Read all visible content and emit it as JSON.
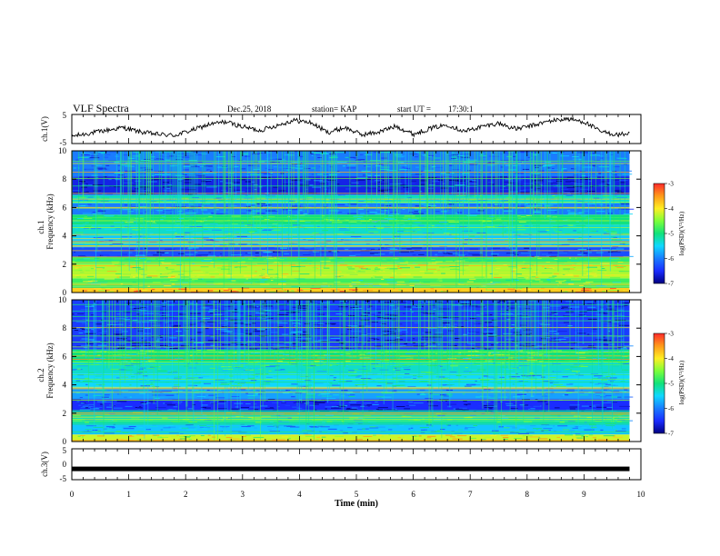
{
  "header": {
    "title": "VLF Spectra",
    "date": "Dec.25, 2018",
    "station": "station= KAP",
    "start_label": "start UT =",
    "start_time": "17:30:1"
  },
  "colorbar": {
    "label": "log(PSD)(V²/Hz)",
    "ticks": [
      "-3",
      "-4",
      "-5",
      "-6",
      "-7"
    ],
    "colors": [
      "#ff2b2b",
      "#ff9a1a",
      "#ffee22",
      "#7cff3a",
      "#11e27a",
      "#10d8ff",
      "#1a7cff",
      "#1a2cff",
      "#000080"
    ]
  },
  "chart_data": [
    {
      "type": "line",
      "panel": "ch1-waveform",
      "ylabel": "ch.1(V)",
      "ylim": [
        -5,
        5
      ],
      "yticks": [
        "5",
        "-5"
      ],
      "x_unit": "min",
      "series": [
        {
          "x": [
            0,
            0.3,
            0.6,
            0.9,
            1.2,
            1.5,
            1.8,
            2.1,
            2.4,
            2.7,
            3.0,
            3.3,
            3.6,
            3.9,
            4.2,
            4.5,
            4.8,
            5.1,
            5.4,
            5.7,
            6.0,
            6.3,
            6.6,
            6.9,
            7.2,
            7.5,
            7.8,
            8.1,
            8.4,
            8.7,
            9.0,
            9.3,
            9.6,
            9.8
          ],
          "values": [
            -2.5,
            -1.5,
            -0.5,
            0.5,
            -1.0,
            -1.8,
            -2.2,
            -0.5,
            1.5,
            2.5,
            0.8,
            -0.5,
            1.2,
            3.0,
            2.2,
            -1.2,
            0.5,
            -2.0,
            -1.0,
            1.0,
            -1.8,
            0.2,
            1.5,
            -0.8,
            0.8,
            2.0,
            0.0,
            1.2,
            2.8,
            3.5,
            2.5,
            -1.0,
            -2.0,
            -1.5
          ]
        }
      ]
    },
    {
      "type": "heatmap",
      "panel": "ch1-spectrogram",
      "ylabel": "ch.1 Frequency (kHz)",
      "ylim": [
        0,
        10
      ],
      "yticks": [
        "0",
        "2",
        "4",
        "6",
        "8",
        "10"
      ],
      "description_units": "log(PSD)(V²/Hz)",
      "bands": [
        {
          "f": [
            0.0,
            0.4
          ],
          "level": -3.8
        },
        {
          "f": [
            0.4,
            1.0
          ],
          "level": -4.8
        },
        {
          "f": [
            1.0,
            2.0
          ],
          "level": -4.3
        },
        {
          "f": [
            2.0,
            2.5
          ],
          "level": -4.8
        },
        {
          "f": [
            2.5,
            3.2
          ],
          "level": -6.3
        },
        {
          "f": [
            3.2,
            4.0
          ],
          "level": -5.6
        },
        {
          "f": [
            4.0,
            4.8
          ],
          "level": -5.3
        },
        {
          "f": [
            4.8,
            5.5
          ],
          "level": -5.0
        },
        {
          "f": [
            5.5,
            6.3
          ],
          "level": -6.0
        },
        {
          "f": [
            6.3,
            6.9
          ],
          "level": -5.3
        },
        {
          "f": [
            6.9,
            8.2
          ],
          "level": -6.6
        },
        {
          "f": [
            8.2,
            10.0
          ],
          "level": -6.0
        }
      ]
    },
    {
      "type": "heatmap",
      "panel": "ch2-spectrogram",
      "ylabel": "ch.2 Frequency (kHz)",
      "ylim": [
        0,
        10
      ],
      "yticks": [
        "0",
        "2",
        "4",
        "6",
        "8",
        "10"
      ],
      "description_units": "log(PSD)(V²/Hz)",
      "bands": [
        {
          "f": [
            0.0,
            0.5
          ],
          "level": -4.2
        },
        {
          "f": [
            0.5,
            1.3
          ],
          "level": -5.6
        },
        {
          "f": [
            1.3,
            2.1
          ],
          "level": -5.2
        },
        {
          "f": [
            2.1,
            3.0
          ],
          "level": -6.5
        },
        {
          "f": [
            3.0,
            3.8
          ],
          "level": -5.8
        },
        {
          "f": [
            3.8,
            4.8
          ],
          "level": -5.5
        },
        {
          "f": [
            4.8,
            5.6
          ],
          "level": -5.3
        },
        {
          "f": [
            5.6,
            6.5
          ],
          "level": -5.0
        },
        {
          "f": [
            6.5,
            10.0
          ],
          "level": -6.4
        }
      ]
    },
    {
      "type": "line",
      "panel": "ch3-waveform",
      "ylabel": "ch.3(V)",
      "ylim": [
        -5,
        5
      ],
      "yticks": [
        "5",
        "0",
        "-5"
      ],
      "series": [
        {
          "x": [
            0,
            9.8
          ],
          "values": [
            -1.5,
            -1.5
          ]
        }
      ]
    }
  ],
  "xaxis": {
    "label": "Time (min)",
    "ticks": [
      "0",
      "1",
      "2",
      "3",
      "4",
      "5",
      "6",
      "7",
      "8",
      "9",
      "10"
    ],
    "xlim": [
      0,
      10
    ],
    "data_end": 9.8
  }
}
